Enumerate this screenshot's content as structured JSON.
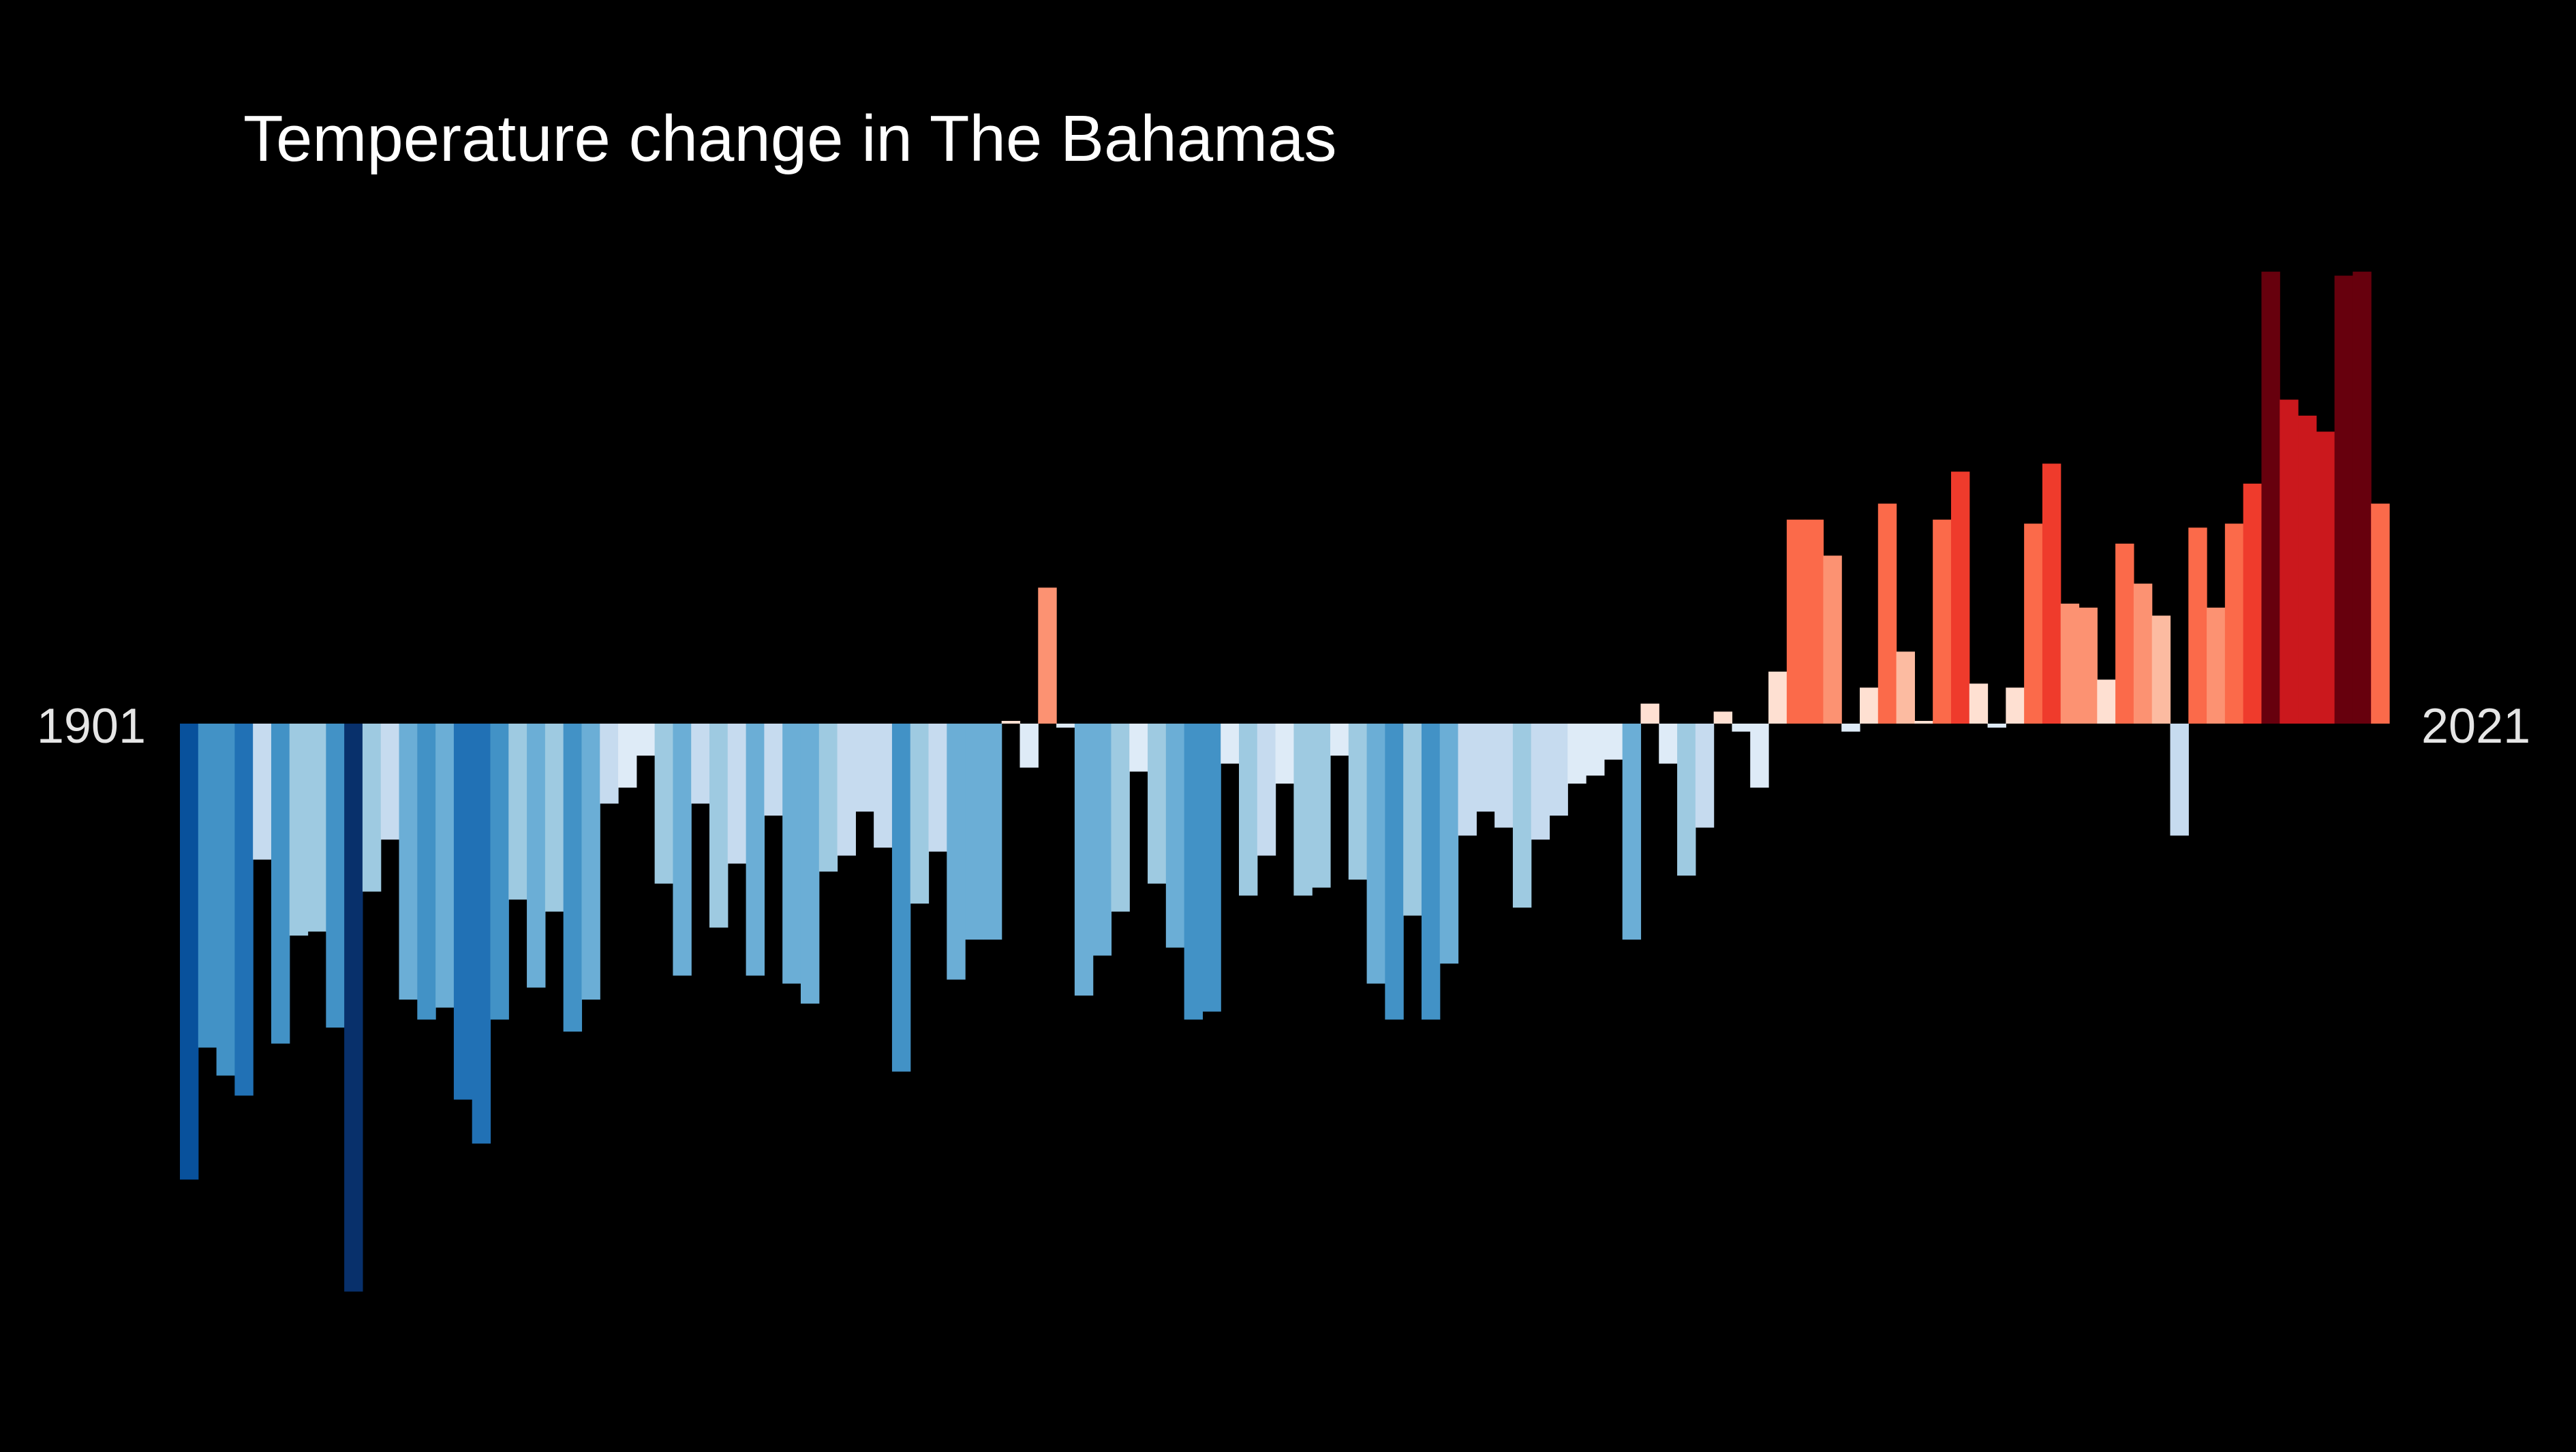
{
  "chart_data": {
    "type": "bar",
    "title": "Temperature change in The Bahamas",
    "start_label": "1901",
    "end_label": "2021",
    "x_start": 1901,
    "x_end": 2021,
    "ylim": [
      -1.42,
      1.15
    ],
    "grid": false,
    "legend": "none",
    "palette": {
      "c0": "#08306b",
      "c1": "#08519c",
      "c2": "#2171b5",
      "c3": "#4292c6",
      "c4": "#6baed6",
      "c5": "#9ecae1",
      "c6": "#c6dbef",
      "c7": "#deebf7",
      "c8": "#fee0d2",
      "c9": "#fcbba1",
      "c10": "#fc9272",
      "c11": "#fb6a4a",
      "c12": "#ef3b2c",
      "c13": "#cb181d",
      "c14": "#a50f15",
      "c15": "#67000d"
    },
    "values": [
      -1.14,
      -0.81,
      -0.88,
      -0.93,
      -0.34,
      -0.8,
      -0.53,
      -0.52,
      -0.76,
      -1.42,
      -0.42,
      -0.29,
      -0.69,
      -0.74,
      -0.71,
      -0.94,
      -1.05,
      -0.74,
      -0.44,
      -0.66,
      -0.47,
      -0.77,
      -0.69,
      -0.2,
      -0.16,
      -0.08,
      -0.4,
      -0.63,
      -0.2,
      -0.51,
      -0.35,
      -0.63,
      -0.23,
      -0.65,
      -0.7,
      -0.37,
      -0.33,
      -0.22,
      -0.31,
      -0.87,
      -0.45,
      -0.32,
      -0.64,
      -0.54,
      -0.54,
      0.0,
      -0.11,
      0.34,
      -0.01,
      -0.68,
      -0.58,
      -0.47,
      -0.12,
      -0.4,
      -0.56,
      -0.74,
      -0.72,
      -0.1,
      -0.43,
      -0.33,
      -0.15,
      -0.43,
      -0.41,
      -0.08,
      -0.39,
      -0.65,
      -0.74,
      -0.48,
      -0.74,
      -0.6,
      -0.28,
      -0.22,
      -0.26,
      -0.46,
      -0.29,
      -0.23,
      -0.15,
      -0.13,
      -0.09,
      -0.54,
      0.05,
      -0.1,
      -0.38,
      -0.26,
      0.03,
      -0.02,
      -0.16,
      0.13,
      0.51,
      0.51,
      0.42,
      -0.02,
      0.09,
      0.55,
      0.18,
      0.0,
      0.51,
      0.63,
      0.1,
      -0.01,
      0.09,
      0.5,
      0.65,
      0.3,
      0.29,
      0.11,
      0.45,
      0.35,
      0.27,
      -0.28,
      0.49,
      0.29,
      0.5,
      0.6,
      1.13,
      0.81,
      0.77,
      0.73,
      1.12,
      1.13,
      0.55
    ]
  }
}
